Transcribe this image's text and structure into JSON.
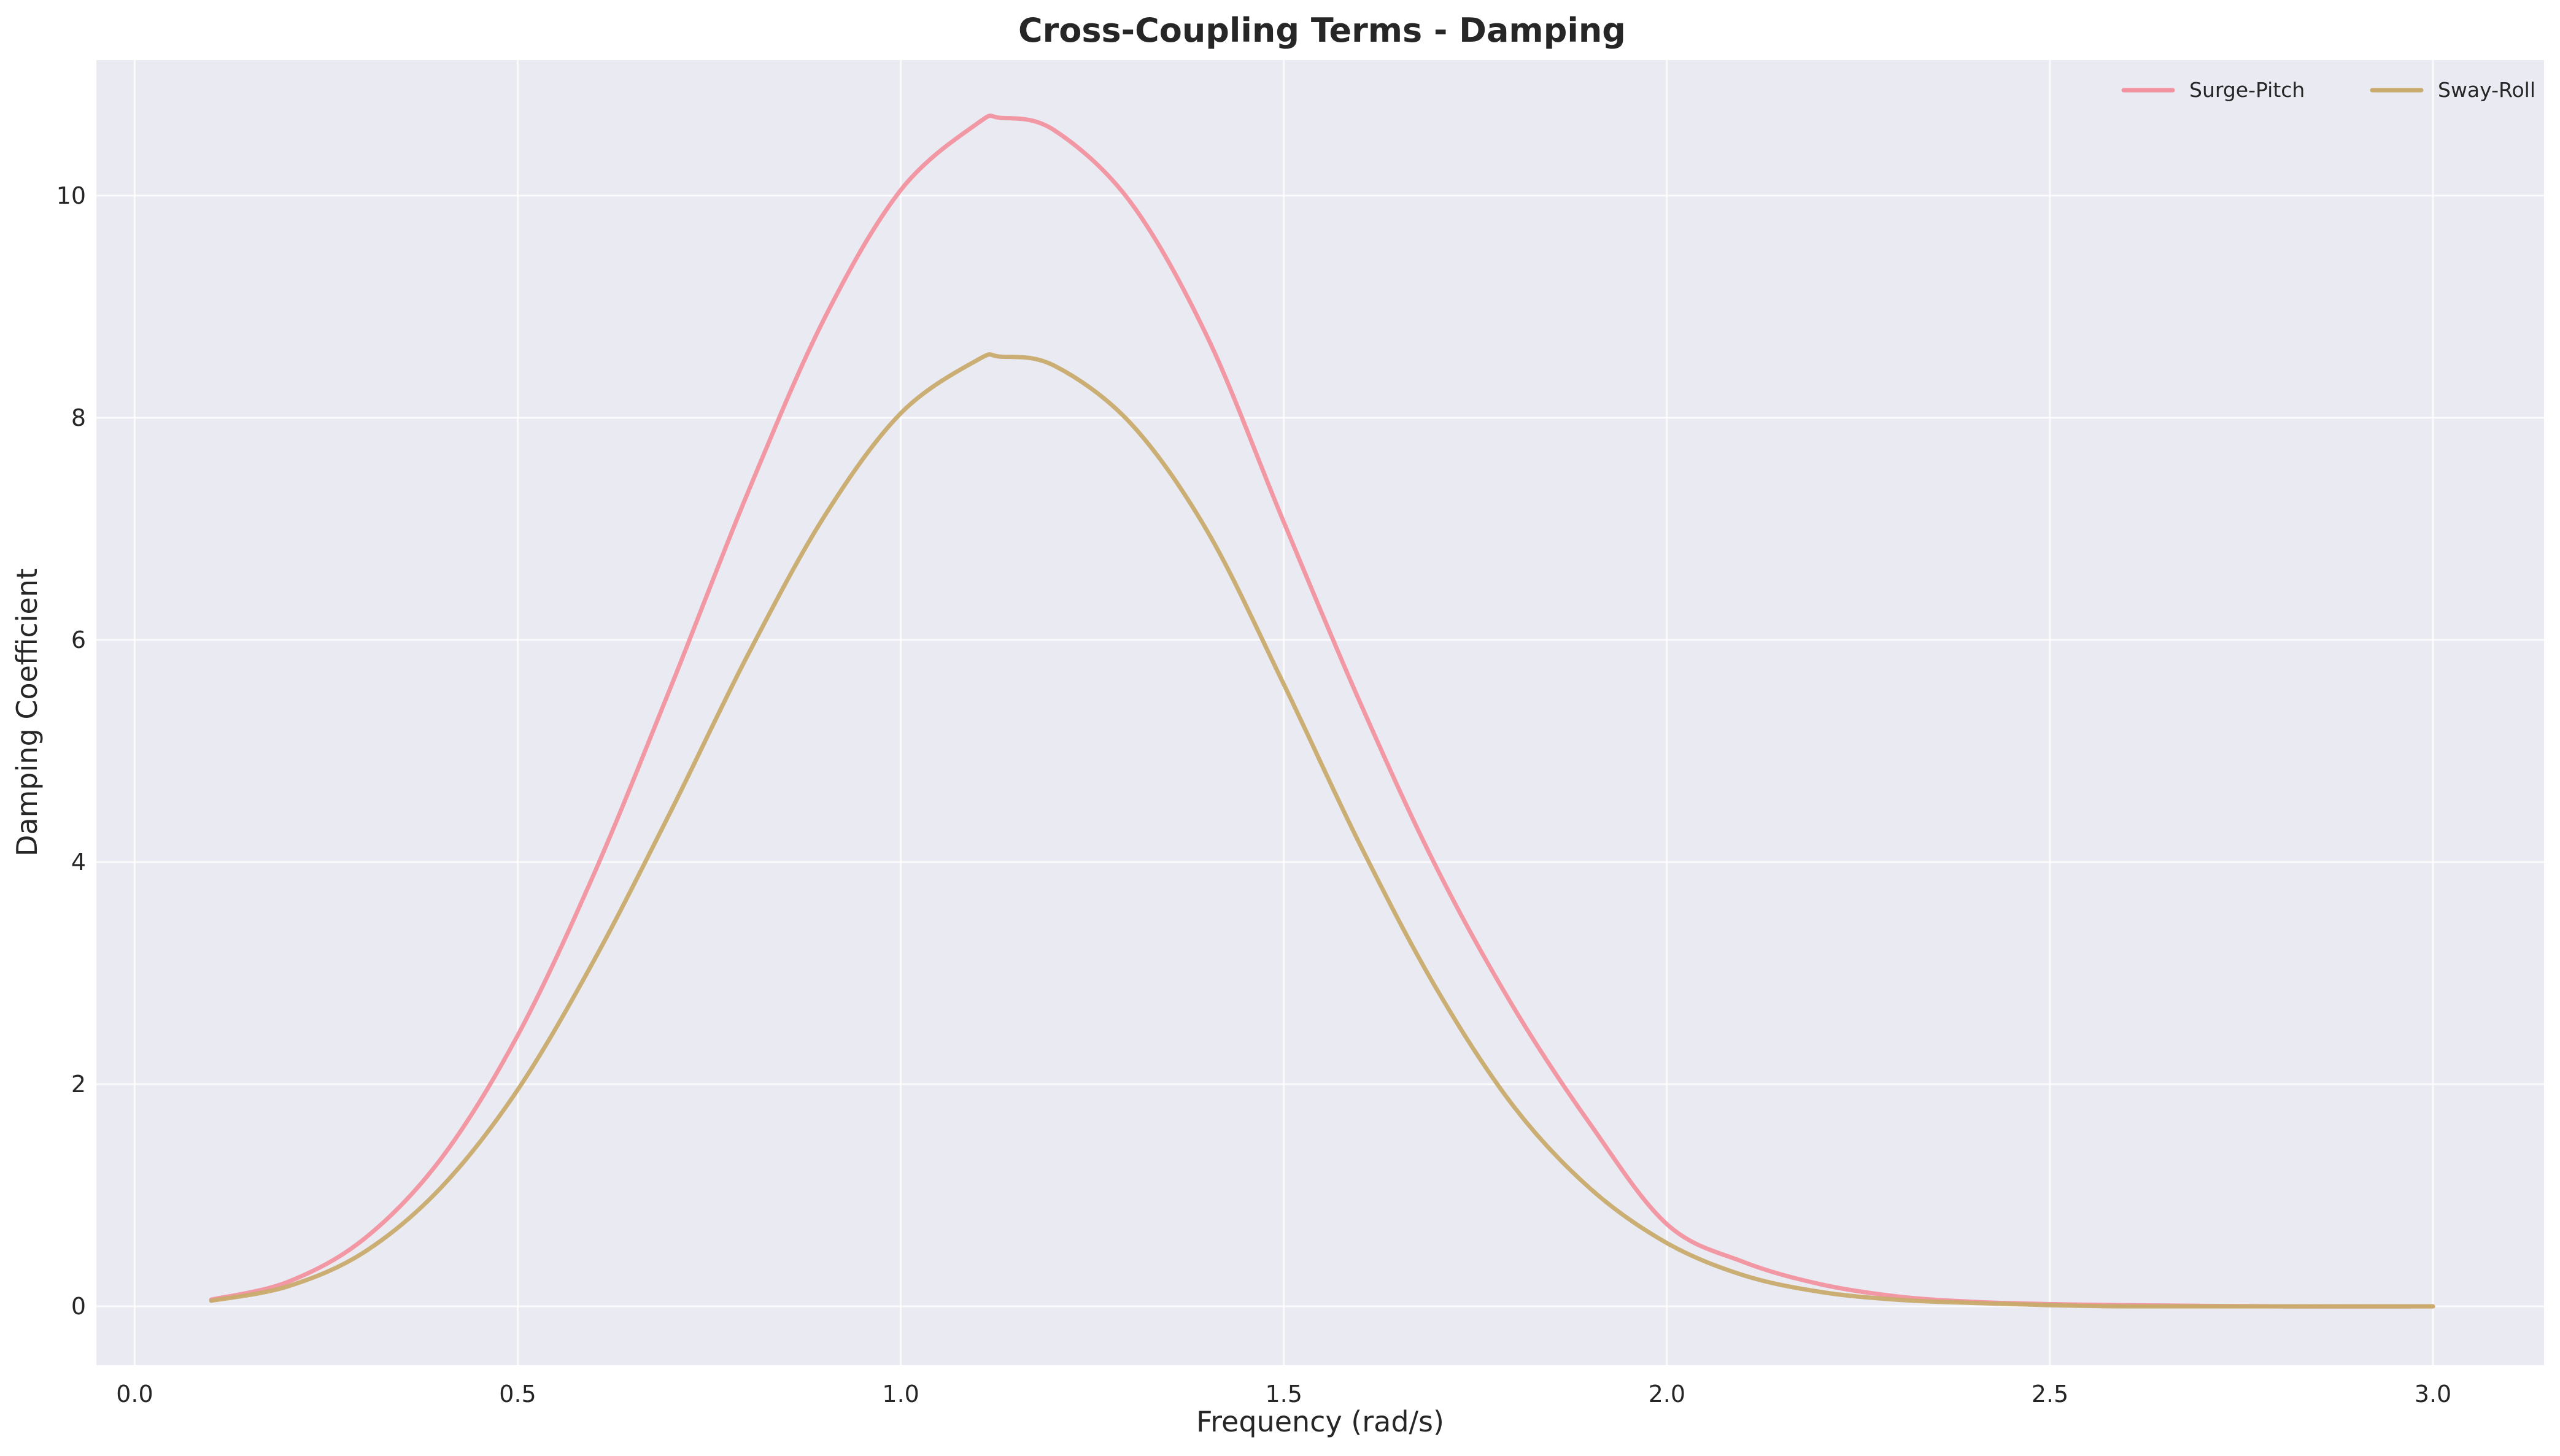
{
  "chart_data": {
    "type": "line",
    "title": "Cross-Coupling Terms - Damping",
    "xlabel": "Frequency (rad/s)",
    "ylabel": "Damping Coefficient",
    "xlim": [
      -0.05,
      3.145
    ],
    "ylim": [
      -0.53,
      11.22
    ],
    "xticks": [
      0.0,
      0.5,
      1.0,
      1.5,
      2.0,
      2.5,
      3.0
    ],
    "xtick_labels": [
      "0.0",
      "0.5",
      "1.0",
      "1.5",
      "2.0",
      "2.5",
      "3.0"
    ],
    "yticks": [
      0,
      2,
      4,
      6,
      8,
      10
    ],
    "ytick_labels": [
      "0",
      "2",
      "4",
      "6",
      "8",
      "10"
    ],
    "grid": true,
    "legend_position": "top-right",
    "legend_columns": 2,
    "series": [
      {
        "name": "Surge-Pitch",
        "color": "#f2929f",
        "x": [
          0.1,
          0.2,
          0.3,
          0.4,
          0.5,
          0.6,
          0.7,
          0.8,
          0.9,
          1.0,
          1.1,
          1.13,
          1.2,
          1.3,
          1.4,
          1.5,
          1.6,
          1.7,
          1.8,
          1.9,
          2.0,
          2.1,
          2.2,
          2.3,
          2.4,
          2.5,
          2.6,
          2.8,
          3.0
        ],
        "y": [
          0.06,
          0.22,
          0.61,
          1.33,
          2.44,
          3.9,
          5.58,
          7.32,
          8.89,
          10.05,
          10.65,
          10.7,
          10.59,
          9.94,
          8.73,
          7.06,
          5.43,
          3.94,
          2.69,
          1.64,
          0.74,
          0.4,
          0.2,
          0.09,
          0.04,
          0.02,
          0.01,
          0.0,
          0.0
        ]
      },
      {
        "name": "Sway-Roll",
        "color": "#c8ab6c",
        "x": [
          0.1,
          0.2,
          0.3,
          0.4,
          0.5,
          0.6,
          0.7,
          0.8,
          0.9,
          1.0,
          1.1,
          1.13,
          1.2,
          1.3,
          1.4,
          1.5,
          1.6,
          1.7,
          1.8,
          1.9,
          2.0,
          2.1,
          2.2,
          2.3,
          2.4,
          2.5,
          2.6,
          2.8,
          3.0
        ],
        "y": [
          0.05,
          0.18,
          0.49,
          1.07,
          1.95,
          3.12,
          4.46,
          5.86,
          7.11,
          8.04,
          8.52,
          8.55,
          8.47,
          7.95,
          6.98,
          5.6,
          4.15,
          2.85,
          1.8,
          1.06,
          0.57,
          0.28,
          0.13,
          0.06,
          0.03,
          0.01,
          0.0,
          0.0,
          0.0
        ]
      }
    ]
  }
}
